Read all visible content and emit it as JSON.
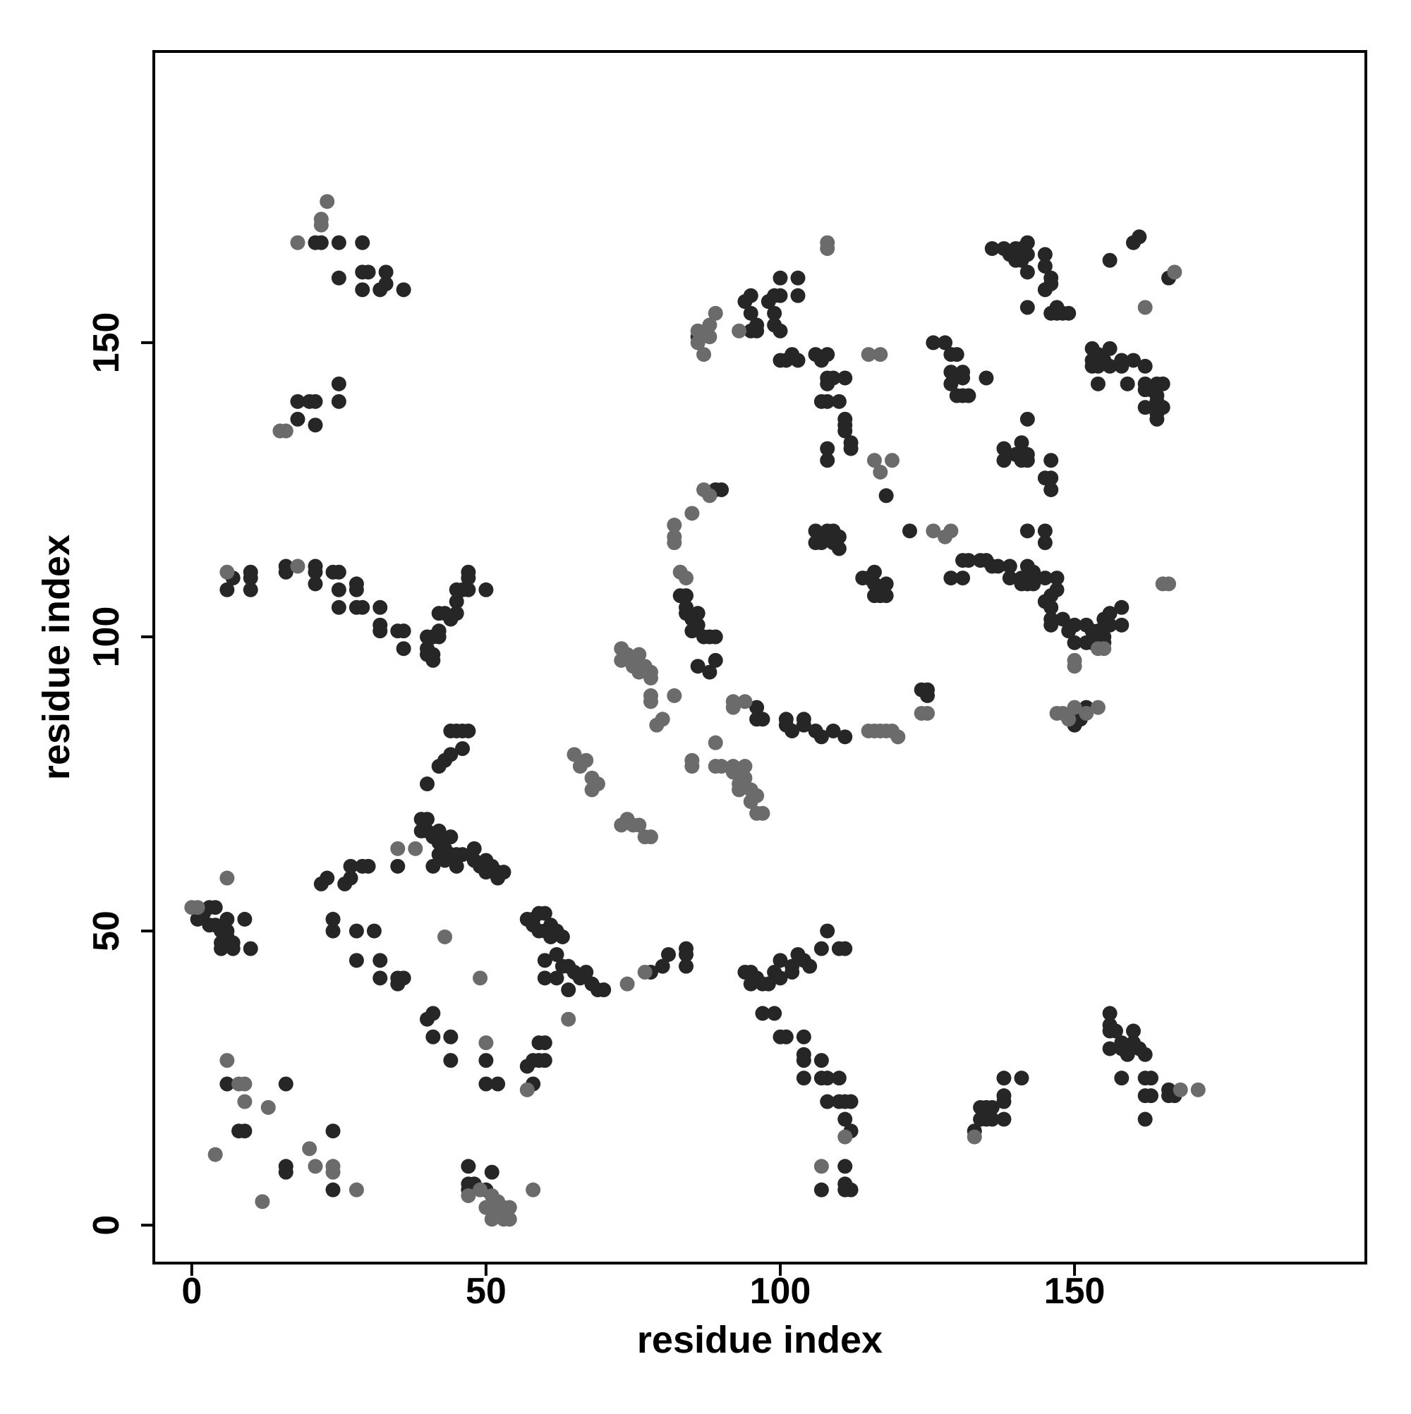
{
  "chart_data": {
    "type": "scatter",
    "x_label": "residue index",
    "y_label": "residue index",
    "xlim": [
      -6.45,
      199.5
    ],
    "ylim": [
      -6.45,
      199.5
    ],
    "xticks": [
      0,
      50,
      100,
      150
    ],
    "yticks": [
      0,
      50,
      100,
      150
    ],
    "grid": false,
    "series": [
      {
        "color": "#262626",
        "x": [
          21,
          22,
          25,
          29,
          29,
          30,
          33,
          29,
          32,
          33,
          36,
          25,
          18,
          18,
          21,
          20,
          21,
          25,
          25,
          7,
          6,
          10,
          10,
          10,
          16,
          16,
          21,
          21,
          21,
          24,
          25,
          25,
          25,
          28,
          28,
          28,
          29,
          32,
          32,
          32,
          35,
          36,
          36,
          40,
          40,
          40,
          41,
          41,
          42,
          42,
          42,
          43,
          44,
          45,
          45,
          45,
          46,
          47,
          47,
          47,
          50,
          41,
          39,
          39,
          40,
          40,
          41,
          42,
          42,
          42,
          43,
          43,
          44,
          44,
          45,
          46,
          41,
          45,
          40,
          43,
          44,
          44,
          45,
          46,
          46,
          47,
          42,
          22,
          23,
          26,
          27,
          27,
          29,
          30,
          35,
          48,
          48,
          49,
          50,
          50,
          51,
          52,
          52,
          53,
          1,
          2,
          3,
          4,
          3,
          4,
          5,
          5,
          6,
          6,
          6,
          7,
          7,
          9,
          10,
          5,
          24,
          24,
          28,
          31,
          28,
          32,
          32,
          35,
          35,
          36,
          40,
          41,
          41,
          44,
          44,
          50,
          50,
          52,
          57,
          58,
          58,
          59,
          59,
          60,
          60,
          61,
          61,
          62,
          63,
          60,
          62,
          63,
          64,
          65,
          60,
          62,
          64,
          66,
          67,
          68,
          69,
          70,
          57,
          58,
          58,
          59,
          59,
          60,
          60,
          78,
          80,
          81,
          84,
          84,
          84,
          6,
          8,
          9,
          16,
          16,
          16,
          24,
          24,
          47,
          47,
          47,
          48,
          50,
          51,
          83,
          84,
          84,
          84,
          85,
          85,
          86,
          86,
          87,
          88,
          89,
          86,
          88,
          89,
          89,
          90,
          86,
          94,
          95,
          95,
          96,
          97,
          98,
          99,
          100,
          100,
          102,
          102,
          103,
          104,
          105,
          107,
          108,
          110,
          111,
          97,
          99,
          100,
          101,
          104,
          104,
          104,
          104,
          107,
          107,
          108,
          108,
          110,
          110,
          111,
          112,
          112,
          111,
          111,
          111,
          112,
          107,
          111,
          96,
          96,
          97,
          101,
          101,
          102,
          104,
          106,
          107,
          109,
          111,
          104,
          95,
          94,
          95,
          95,
          96,
          96,
          98,
          99,
          99,
          99,
          100,
          100,
          100,
          103,
          103,
          100,
          101,
          102,
          103,
          106,
          107,
          108,
          108,
          108,
          109,
          107,
          108,
          110,
          111,
          111,
          112,
          112,
          111,
          108,
          108,
          111,
          106,
          106,
          107,
          108,
          109,
          109,
          110,
          110,
          114,
          115,
          116,
          116,
          117,
          118,
          118,
          116,
          118,
          124,
          125,
          125,
          122,
          126,
          128,
          129,
          130,
          129,
          129,
          130,
          131,
          131,
          132,
          131,
          135,
          129,
          131,
          131,
          132,
          134,
          135,
          136,
          137,
          138,
          138,
          140,
          141,
          141,
          142,
          142,
          142,
          145,
          146,
          146,
          146,
          142,
          145,
          145,
          139,
          139,
          141,
          141,
          142,
          142,
          143,
          143,
          145,
          145,
          146,
          146,
          146,
          146,
          147,
          148,
          147,
          149,
          150,
          150,
          152,
          152,
          153,
          153,
          154,
          155,
          155,
          155,
          156,
          156,
          158,
          158,
          150,
          151,
          152,
          136,
          138,
          139,
          140,
          140,
          141,
          141,
          142,
          142,
          142,
          145,
          145,
          146,
          145,
          146,
          146,
          147,
          147,
          148,
          149,
          142,
          153,
          153,
          154,
          154,
          155,
          154,
          156,
          156,
          153,
          156,
          158,
          158,
          159,
          160,
          162,
          162,
          162,
          162,
          163,
          164,
          164,
          164,
          164,
          165,
          165,
          164,
          160,
          161,
          166,
          133,
          134,
          134,
          135,
          135,
          136,
          136,
          138,
          138,
          138,
          138,
          141,
          156,
          156,
          156,
          157,
          156,
          158,
          158,
          158,
          159,
          159,
          160,
          160,
          161,
          162,
          162,
          162,
          163,
          163,
          162,
          166,
          166,
          167
        ],
        "values": [
          167,
          167,
          167,
          167,
          162,
          162,
          162,
          159,
          159,
          160,
          159,
          161,
          137,
          140,
          136,
          140,
          140,
          140,
          143,
          110,
          108,
          111,
          110,
          108,
          112,
          111,
          112,
          111,
          109,
          111,
          111,
          108,
          105,
          109,
          108,
          105,
          105,
          105,
          102,
          101,
          101,
          101,
          98,
          100,
          98,
          97,
          96,
          100,
          100,
          101,
          104,
          104,
          103,
          104,
          106,
          108,
          108,
          108,
          111,
          110,
          108,
          97,
          67,
          69,
          69,
          67,
          66,
          67,
          65,
          63,
          62,
          64,
          66,
          63,
          63,
          63,
          61,
          61,
          75,
          79,
          80,
          84,
          84,
          84,
          81,
          84,
          78,
          58,
          59,
          58,
          59,
          61,
          61,
          61,
          61,
          64,
          62,
          61,
          60,
          62,
          61,
          59,
          60,
          60,
          52,
          53,
          54,
          54,
          51,
          51,
          50,
          48,
          52,
          50,
          49,
          48,
          47,
          52,
          47,
          47,
          52,
          50,
          50,
          50,
          45,
          45,
          42,
          41,
          42,
          42,
          35,
          36,
          32,
          32,
          28,
          28,
          24,
          24,
          52,
          52,
          51,
          53,
          50,
          53,
          50,
          51,
          49,
          50,
          49,
          45,
          46,
          44,
          44,
          43,
          42,
          42,
          40,
          42,
          43,
          41,
          40,
          40,
          27,
          28,
          24,
          28,
          31,
          31,
          28,
          43,
          44,
          46,
          47,
          46,
          44,
          24,
          16,
          16,
          24,
          10,
          9,
          6,
          16,
          10,
          7,
          6,
          7,
          6,
          9,
          107,
          107,
          105,
          104,
          103,
          101,
          104,
          102,
          100,
          100,
          100,
          95,
          94,
          96,
          125,
          125,
          151,
          43,
          43,
          41,
          42,
          41,
          41,
          43,
          42,
          45,
          44,
          43,
          46,
          45,
          44,
          47,
          50,
          47,
          47,
          36,
          36,
          32,
          32,
          32,
          29,
          25,
          28,
          28,
          25,
          25,
          21,
          25,
          21,
          21,
          21,
          16,
          18,
          10,
          7,
          6,
          6,
          6,
          88,
          86,
          86,
          86,
          85,
          84,
          85,
          84,
          83,
          84,
          83,
          86,
          152,
          157,
          158,
          155,
          153,
          152,
          157,
          158,
          155,
          153,
          152,
          158,
          161,
          158,
          161,
          147,
          147,
          148,
          147,
          148,
          147,
          148,
          144,
          143,
          144,
          140,
          140,
          140,
          137,
          136,
          133,
          132,
          135,
          132,
          130,
          144,
          118,
          116,
          116,
          118,
          118,
          116,
          115,
          117,
          110,
          110,
          109,
          111,
          107,
          107,
          109,
          107,
          124,
          91,
          91,
          90,
          118,
          150,
          150,
          148,
          148,
          145,
          143,
          141,
          145,
          144,
          141,
          141,
          144,
          110,
          110,
          113,
          113,
          113,
          113,
          112,
          112,
          132,
          130,
          131,
          130,
          133,
          131,
          137,
          130,
          127,
          130,
          127,
          125,
          118,
          118,
          116,
          112,
          110,
          110,
          109,
          109,
          112,
          109,
          111,
          110,
          106,
          107,
          105,
          103,
          102,
          108,
          103,
          110,
          101,
          102,
          99,
          102,
          99,
          99,
          101,
          101,
          103,
          99,
          100,
          102,
          104,
          105,
          102,
          85,
          86,
          88,
          166,
          166,
          165,
          166,
          164,
          166,
          164,
          167,
          165,
          162,
          165,
          163,
          160,
          159,
          161,
          155,
          156,
          155,
          155,
          155,
          156,
          149,
          147,
          148,
          146,
          147,
          143,
          146,
          149,
          146,
          164,
          146,
          147,
          143,
          147,
          146,
          143,
          139,
          142,
          142,
          141,
          140,
          138,
          143,
          139,
          143,
          137,
          167,
          168,
          161,
          16,
          18,
          20,
          20,
          18,
          20,
          18,
          22,
          21,
          18,
          25,
          25,
          36,
          34,
          33,
          33,
          30,
          31,
          30,
          25,
          30,
          29,
          31,
          33,
          30,
          25,
          29,
          22,
          22,
          25,
          18,
          22,
          23,
          22
        ]
      },
      {
        "color": "#6b6b6b",
        "x": [
          65,
          66,
          68,
          69,
          68,
          73,
          73,
          74,
          75,
          75,
          76,
          76,
          77,
          78,
          78,
          78,
          78,
          79,
          80,
          82,
          73,
          74,
          75,
          76,
          77,
          78,
          67,
          85,
          85,
          89,
          89,
          90,
          92,
          92,
          93,
          93,
          94,
          94,
          95,
          95,
          96,
          96,
          97,
          92,
          92,
          94,
          82,
          82,
          82,
          85,
          87,
          88,
          86,
          86,
          87,
          88,
          88,
          89,
          83,
          84,
          6,
          8,
          9,
          9,
          13,
          4,
          20,
          21,
          24,
          24,
          28,
          12,
          47,
          49,
          51,
          52,
          52,
          53,
          53,
          54,
          54,
          51,
          50,
          58,
          115,
          116,
          117,
          118,
          119,
          120,
          115,
          117,
          116,
          117,
          119,
          124,
          125,
          147,
          148,
          149,
          150,
          152,
          154,
          150,
          150,
          154,
          155,
          23,
          22,
          22,
          18,
          15,
          16,
          6,
          18,
          0,
          1,
          6,
          43,
          49,
          50,
          57,
          64,
          74,
          77,
          108,
          108,
          126,
          128,
          129,
          162,
          167,
          165,
          166,
          171,
          168,
          133,
          111,
          107,
          93,
          38,
          35
        ],
        "values": [
          80,
          78,
          76,
          75,
          74,
          98,
          96,
          97,
          96,
          95,
          97,
          94,
          95,
          94,
          93,
          90,
          89,
          85,
          86,
          90,
          68,
          69,
          68,
          68,
          66,
          66,
          79,
          79,
          78,
          82,
          78,
          78,
          78,
          77,
          75,
          74,
          78,
          76,
          74,
          72,
          73,
          70,
          70,
          88,
          89,
          89,
          119,
          117,
          116,
          121,
          125,
          124,
          152,
          150,
          148,
          151,
          153,
          155,
          111,
          110,
          28,
          24,
          24,
          21,
          20,
          12,
          13,
          10,
          10,
          9,
          6,
          4,
          5,
          6,
          5,
          4,
          2,
          3,
          1,
          1,
          3,
          1,
          3,
          6,
          84,
          84,
          84,
          84,
          84,
          83,
          148,
          148,
          130,
          128,
          130,
          87,
          87,
          87,
          87,
          86,
          88,
          87,
          88,
          96,
          95,
          98,
          98,
          174,
          171,
          170,
          167,
          135,
          135,
          111,
          112,
          54,
          54,
          59,
          49,
          42,
          31,
          23,
          35,
          41,
          43,
          167,
          166,
          118,
          117,
          118,
          156,
          162,
          109,
          109,
          23,
          23,
          15,
          15,
          10,
          152,
          64,
          64
        ]
      }
    ]
  }
}
